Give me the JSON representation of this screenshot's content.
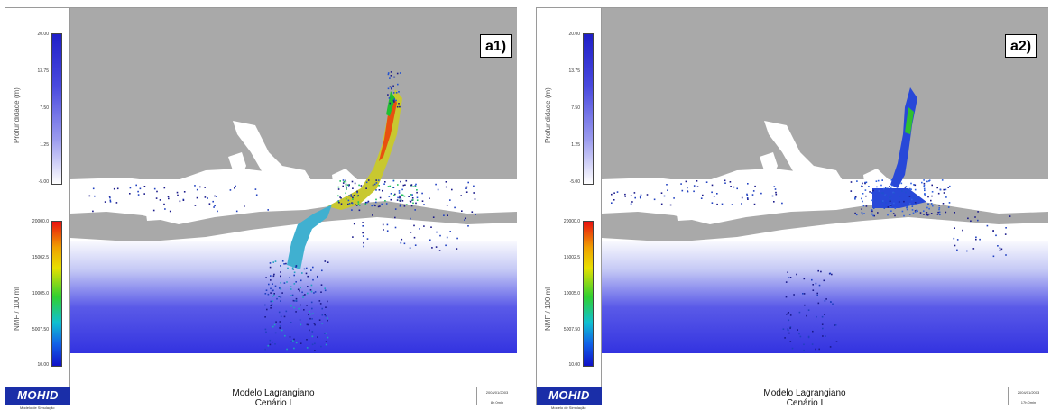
{
  "panels": [
    {
      "label": "a1)",
      "colorbar_top": {
        "title": "Profundidade (m)",
        "ticks": [
          "20.00",
          "13.75",
          "7.50",
          "1.25",
          "-5.00"
        ]
      },
      "colorbar_bottom": {
        "title": "NMF / 100 ml",
        "ticks": [
          "20000.0",
          "15002.5",
          "10005.0",
          "5007.50",
          "10.00"
        ]
      },
      "logo": "MOHID",
      "logo_sub": "Modelo de Simulação",
      "footer": {
        "title": "Modelo Lagrangiano",
        "subtitle": "Cenário I",
        "date": "2004/01/2003",
        "time": "8h 0min"
      }
    },
    {
      "label": "a2)",
      "colorbar_top": {
        "title": "Profundidade (m)",
        "ticks": [
          "20.00",
          "13.75",
          "7.50",
          "1.25",
          "-5.00"
        ]
      },
      "colorbar_bottom": {
        "title": "NMF / 100 ml",
        "ticks": [
          "20000.0",
          "15002.5",
          "10005.0",
          "5007.50",
          "10.00"
        ]
      },
      "logo": "MOHID",
      "logo_sub": "Modelo de Simulação",
      "footer": {
        "title": "Modelo Lagrangiano",
        "subtitle": "Cenário I",
        "date": "2004/01/2003",
        "time": "17h 0min"
      }
    }
  ],
  "colors": {
    "land": "#a9a9a9",
    "deep_water": "#3030e0",
    "logo_bg": "#1a2ea8"
  }
}
